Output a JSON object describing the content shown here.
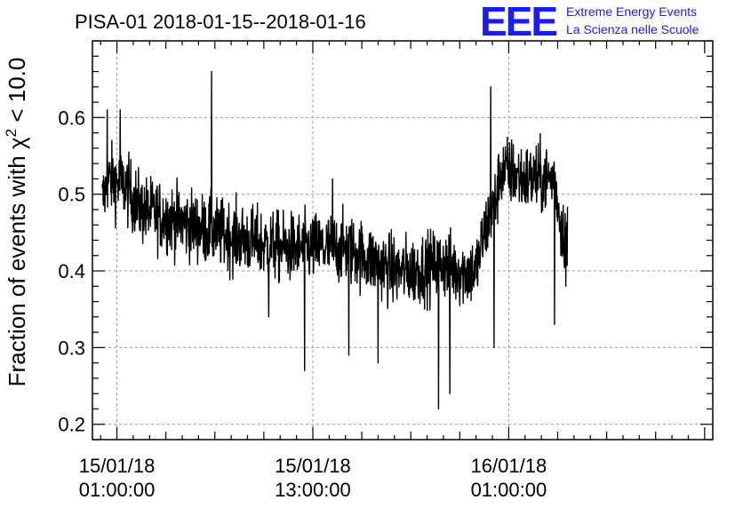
{
  "chart_data": {
    "type": "line",
    "title": "PISA-01 2018-01-15--2018-01-16",
    "ylabel_prefix": "Fraction of events with ",
    "ylabel_symbol": "χ",
    "ylabel_exp": "2",
    "ylabel_suffix": " < 10.0",
    "xlabel": "",
    "x_unit": "hours since 15/01/18 01:00:00",
    "xlim": [
      -1.5,
      36.5
    ],
    "ylim": [
      0.18,
      0.7
    ],
    "y_ticks": [
      0.2,
      0.3,
      0.4,
      0.5,
      0.6
    ],
    "y_tick_labels": [
      "0.2",
      "0.3",
      "0.4",
      "0.5",
      "0.6"
    ],
    "x_ticks": [
      {
        "x": 0,
        "line1": "15/01/18",
        "line2": "01:00:00"
      },
      {
        "x": 12,
        "line1": "15/01/18",
        "line2": "13:00:00"
      },
      {
        "x": 24,
        "line1": "16/01/18",
        "line2": "01:00:00"
      }
    ],
    "grid": true,
    "series": [
      {
        "color": "#000000",
        "start_x": -0.9,
        "end_x": 27.6,
        "trend": [
          [
            -0.9,
            0.49
          ],
          [
            -0.5,
            0.52
          ],
          [
            0.5,
            0.51
          ],
          [
            1.5,
            0.48
          ],
          [
            3,
            0.47
          ],
          [
            4.5,
            0.46
          ],
          [
            6,
            0.45
          ],
          [
            8,
            0.44
          ],
          [
            10,
            0.43
          ],
          [
            12,
            0.43
          ],
          [
            14,
            0.43
          ],
          [
            15,
            0.42
          ],
          [
            16,
            0.41
          ],
          [
            17,
            0.4
          ],
          [
            18,
            0.4
          ],
          [
            20,
            0.41
          ],
          [
            21,
            0.4
          ],
          [
            22,
            0.4
          ],
          [
            22.5,
            0.45
          ],
          [
            23.2,
            0.49
          ],
          [
            23.5,
            0.53
          ],
          [
            24,
            0.53
          ],
          [
            25,
            0.52
          ],
          [
            26,
            0.52
          ],
          [
            26.8,
            0.52
          ],
          [
            27.2,
            0.46
          ],
          [
            27.6,
            0.44
          ]
        ],
        "spread": 0.045,
        "spikes": [
          [
            -0.6,
            0.61
          ],
          [
            0.2,
            0.61
          ],
          [
            5.8,
            0.66
          ],
          [
            13.2,
            0.52
          ],
          [
            9.3,
            0.34
          ],
          [
            11.5,
            0.27
          ],
          [
            14.2,
            0.29
          ],
          [
            16.0,
            0.28
          ],
          [
            19.7,
            0.22
          ],
          [
            20.4,
            0.24
          ],
          [
            22.9,
            0.64
          ],
          [
            23.1,
            0.3
          ],
          [
            26.8,
            0.33
          ],
          [
            27.5,
            0.38
          ]
        ]
      }
    ]
  },
  "logo": {
    "mark": "EEE",
    "line1": "Extreme Energy Events",
    "line2": "La Scienza nelle Scuole"
  }
}
